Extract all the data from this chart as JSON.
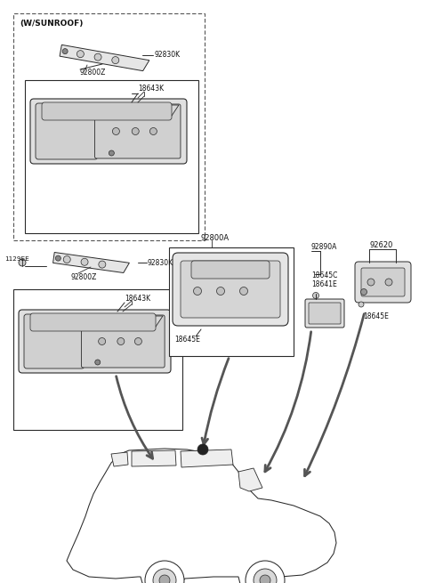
{
  "bg_color": "#ffffff",
  "fig_width": 4.8,
  "fig_height": 6.55,
  "dpi": 100,
  "lc": "#2a2a2a",
  "labels": {
    "w_sunroof": "(W/SUNROOF)",
    "92830K_top": "92830K",
    "92800Z_top": "92800Z",
    "18643K_top": "18643K",
    "1129EE": "1129EE",
    "92830K_mid": "92830K",
    "92800Z_mid": "92800Z",
    "18643K_mid": "18643K",
    "92800A": "92800A",
    "18645E_c": "18645E",
    "92890A": "92890A",
    "18645C": "18645C",
    "18641E": "18641E",
    "92620": "92620",
    "18645E_r": "18645E"
  }
}
